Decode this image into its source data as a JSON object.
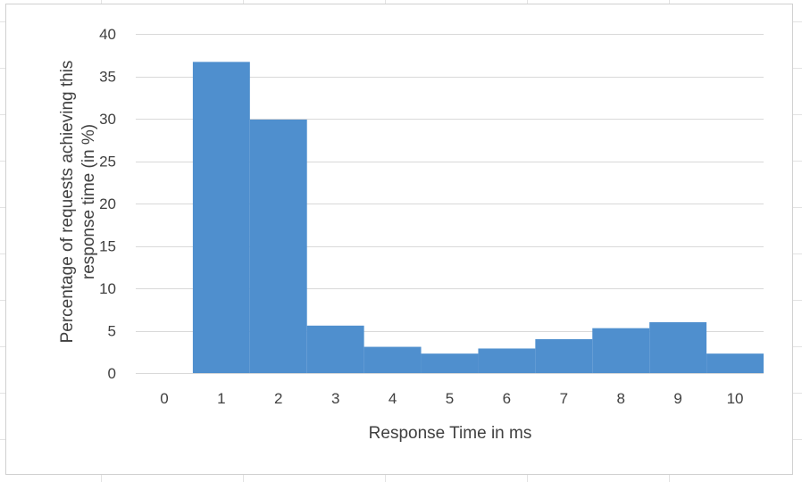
{
  "chart_data": {
    "type": "bar",
    "categories": [
      "0",
      "1",
      "2",
      "3",
      "4",
      "5",
      "6",
      "7",
      "8",
      "9",
      "10"
    ],
    "series": [
      {
        "values": [
          0,
          36.7,
          29.9,
          5.6,
          3.1,
          2.3,
          2.9,
          4.0,
          5.3,
          6.0,
          2.3
        ],
        "color": "#4f8fce"
      }
    ],
    "title": "",
    "xlabel": "Response Time in ms",
    "ylabel_lines": [
      "Percentage of requests achieving this",
      "response time (in %)"
    ],
    "ylim": [
      0,
      40
    ],
    "yticks": [
      0,
      5,
      10,
      15,
      20,
      25,
      30,
      35,
      40
    ],
    "grid": true,
    "legend": "none",
    "gridline_color": "#d9d9d9",
    "text_color": "#404040"
  }
}
